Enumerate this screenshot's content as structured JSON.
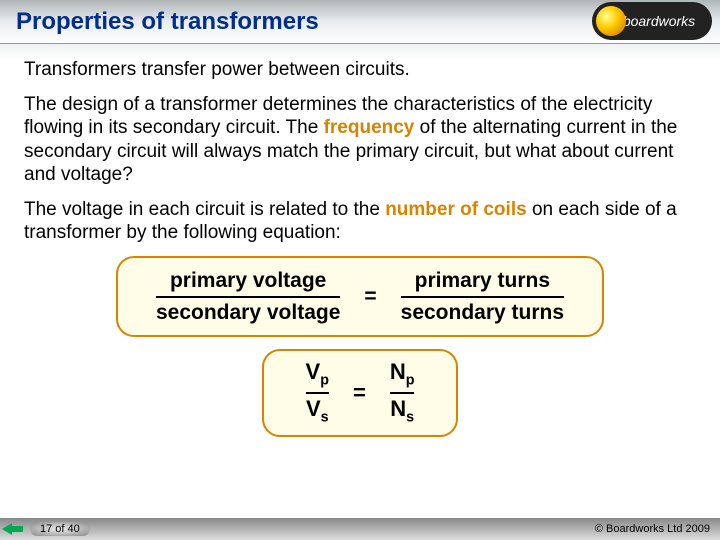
{
  "title": "Properties of transformers",
  "logo_text": "boardworks",
  "p1": "Transformers transfer power between circuits.",
  "p2a": "The design of a transformer determines the characteristics of the electricity flowing in its secondary circuit. The ",
  "p2b": "frequency",
  "p2c": " of the alternating current in the secondary circuit will always match the primary circuit, but what about current and voltage?",
  "p3a": "The voltage in each circuit is related to the ",
  "p3b": "number of coils",
  "p3c": " on each side of a transformer by the following equation:",
  "eq1": {
    "left_num": "primary voltage",
    "left_den": "secondary voltage",
    "right_num": "primary turns",
    "right_den": "secondary turns"
  },
  "eq2": {
    "left_num_base": "V",
    "left_num_sub": "p",
    "left_den_base": "V",
    "left_den_sub": "s",
    "right_num_base": "N",
    "right_num_sub": "p",
    "right_den_base": "N",
    "right_den_sub": "s"
  },
  "page_counter": "17 of 40",
  "copyright": "© Boardworks Ltd 2009",
  "colors": {
    "title_color": "#002e8a",
    "highlight_color": "#d98400",
    "box_border": "#d98400",
    "box_bg": "#fffde7"
  }
}
